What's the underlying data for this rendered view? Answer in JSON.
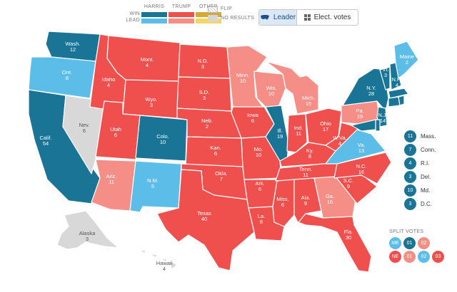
{
  "legend": {
    "headers": [
      "HARRIS",
      "TRUMP",
      "OTHER"
    ],
    "row_labels": [
      "WIN",
      "LEAD"
    ],
    "flip": "FLIP",
    "no_results": "NO RESULTS"
  },
  "toggle": {
    "leader": "Leader",
    "elect_votes": "Elect. votes"
  },
  "colors": {
    "harris_win": "#1a7496",
    "harris_lead": "#5cbde8",
    "trump_win": "#f0504d",
    "trump_lead": "#f58e87",
    "other_win": "#d4a93a",
    "other_lead": "#f2d668",
    "no_results": "#d8d8d8"
  },
  "states": [
    {
      "abbr": "Wash.",
      "votes": "12",
      "status": "harris_win"
    },
    {
      "abbr": "Ore.",
      "votes": "8",
      "status": "harris_lead"
    },
    {
      "abbr": "Calif.",
      "votes": "54",
      "status": "harris_win"
    },
    {
      "abbr": "Nev.",
      "votes": "6",
      "status": "no_results"
    },
    {
      "abbr": "Idaho",
      "votes": "4",
      "status": "trump_win"
    },
    {
      "abbr": "Mont.",
      "votes": "4",
      "status": "trump_win"
    },
    {
      "abbr": "Wyo.",
      "votes": "3",
      "status": "trump_win"
    },
    {
      "abbr": "Utah",
      "votes": "6",
      "status": "trump_win"
    },
    {
      "abbr": "Colo.",
      "votes": "10",
      "status": "harris_win"
    },
    {
      "abbr": "Ariz.",
      "votes": "11",
      "status": "trump_lead"
    },
    {
      "abbr": "N.M.",
      "votes": "5",
      "status": "harris_lead"
    },
    {
      "abbr": "N.D.",
      "votes": "3",
      "status": "trump_win"
    },
    {
      "abbr": "S.D.",
      "votes": "3",
      "status": "trump_win"
    },
    {
      "abbr": "Neb.",
      "votes": "2",
      "status": "trump_win"
    },
    {
      "abbr": "Kan.",
      "votes": "6",
      "status": "trump_win"
    },
    {
      "abbr": "Okla.",
      "votes": "7",
      "status": "trump_win"
    },
    {
      "abbr": "Texas",
      "votes": "40",
      "status": "trump_win"
    },
    {
      "abbr": "Minn.",
      "votes": "10",
      "status": "trump_lead"
    },
    {
      "abbr": "Iowa",
      "votes": "6",
      "status": "trump_win"
    },
    {
      "abbr": "Mo.",
      "votes": "10",
      "status": "trump_win"
    },
    {
      "abbr": "Ark.",
      "votes": "6",
      "status": "trump_win"
    },
    {
      "abbr": "La.",
      "votes": "8",
      "status": "trump_win"
    },
    {
      "abbr": "Wis.",
      "votes": "10",
      "status": "trump_lead"
    },
    {
      "abbr": "Ill.",
      "votes": "19",
      "status": "harris_win"
    },
    {
      "abbr": "Mich.",
      "votes": "15",
      "status": "trump_lead"
    },
    {
      "abbr": "Ind.",
      "votes": "11",
      "status": "trump_win"
    },
    {
      "abbr": "Ohio",
      "votes": "17",
      "status": "trump_win"
    },
    {
      "abbr": "Ky.",
      "votes": "8",
      "status": "trump_win"
    },
    {
      "abbr": "Tenn.",
      "votes": "11",
      "status": "trump_win"
    },
    {
      "abbr": "Miss.",
      "votes": "6",
      "status": "trump_win"
    },
    {
      "abbr": "Ala.",
      "votes": "9",
      "status": "trump_win"
    },
    {
      "abbr": "Ga.",
      "votes": "16",
      "status": "trump_lead"
    },
    {
      "abbr": "Fla.",
      "votes": "30",
      "status": "trump_win"
    },
    {
      "abbr": "S.C.",
      "votes": "9",
      "status": "trump_win"
    },
    {
      "abbr": "N.C.",
      "votes": "16",
      "status": "trump_win"
    },
    {
      "abbr": "Va.",
      "votes": "13",
      "status": "harris_lead"
    },
    {
      "abbr": "W.Va.",
      "votes": "4",
      "status": "trump_win"
    },
    {
      "abbr": "Pa.",
      "votes": "19",
      "status": "trump_lead"
    },
    {
      "abbr": "N.Y.",
      "votes": "28",
      "status": "harris_win"
    },
    {
      "abbr": "Vt.",
      "votes": "3",
      "status": "harris_win"
    },
    {
      "abbr": "N.H.",
      "votes": "4",
      "status": "harris_win"
    },
    {
      "abbr": "Maine",
      "votes": "2",
      "status": "harris_lead"
    },
    {
      "abbr": "N.J.",
      "votes": "14",
      "status": "harris_win"
    },
    {
      "abbr": "Alaska",
      "votes": "3",
      "status": "no_results"
    },
    {
      "abbr": "Hawaii",
      "votes": "4",
      "status": "no_results"
    }
  ],
  "small_states": [
    {
      "name": "Mass.",
      "votes": "11"
    },
    {
      "name": "Conn.",
      "votes": "7"
    },
    {
      "name": "R.I.",
      "votes": "4"
    },
    {
      "name": "Del.",
      "votes": "3"
    },
    {
      "name": "Md.",
      "votes": "10"
    },
    {
      "name": "D.C.",
      "votes": "3"
    }
  ],
  "split_votes": {
    "title": "SPLIT VOTES",
    "me": {
      "label": "ME",
      "districts": [
        "01",
        "02"
      ]
    },
    "ne": {
      "label": "NE",
      "districts": [
        "01",
        "02",
        "03"
      ]
    }
  }
}
